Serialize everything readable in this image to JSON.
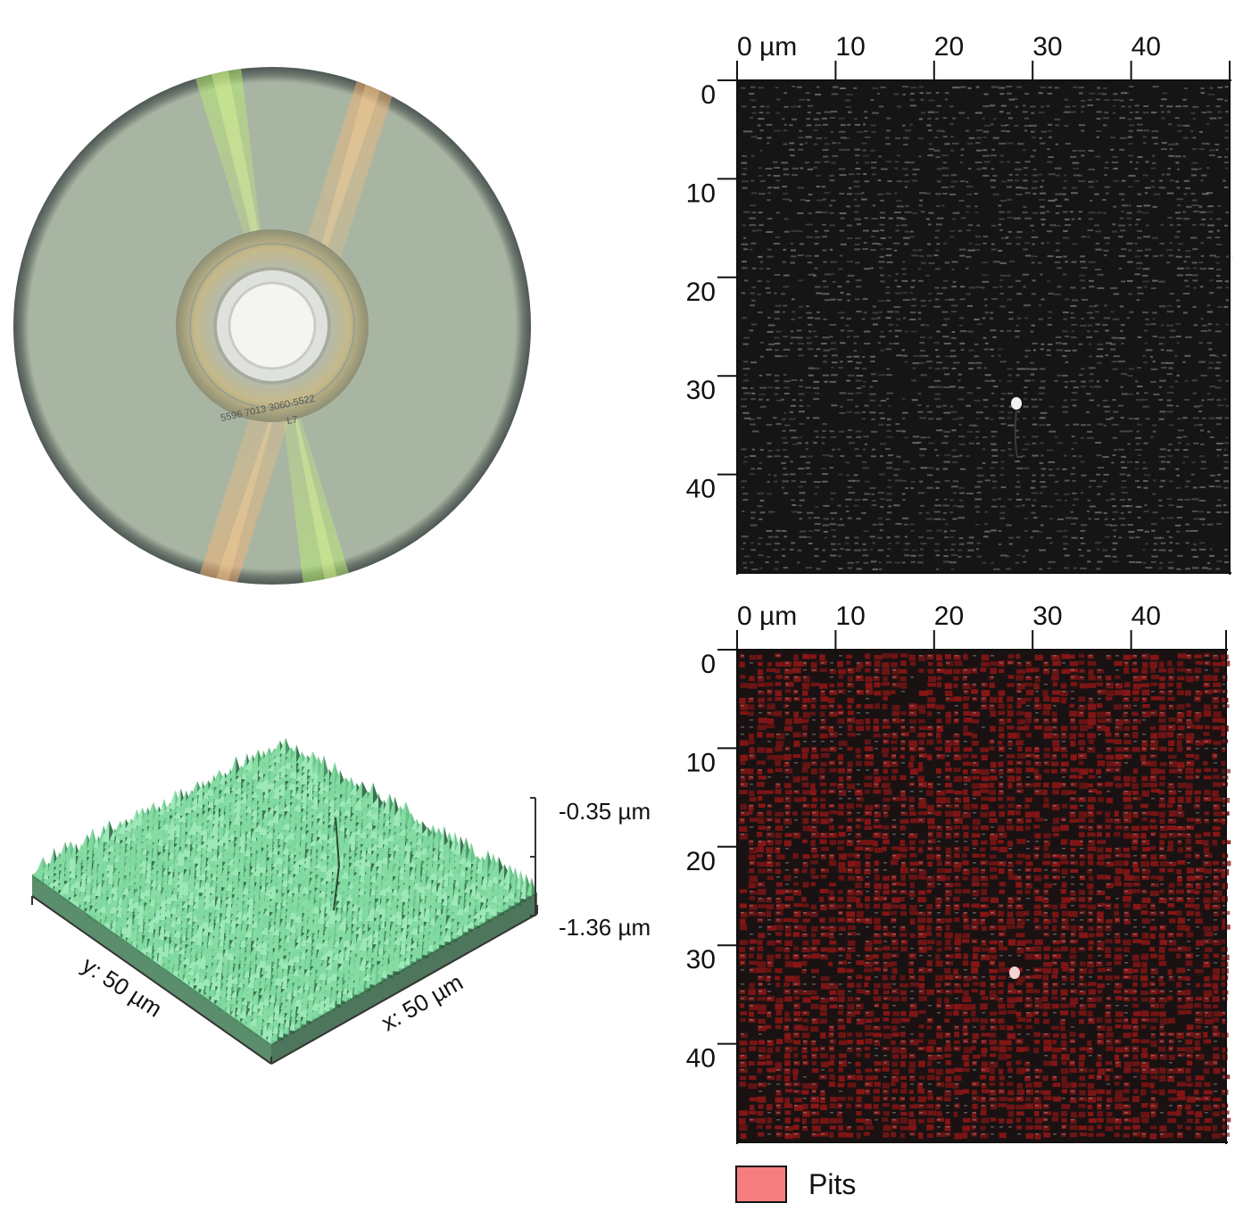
{
  "disc": {
    "hub_text_1": "5596 7013 3060-5522",
    "hub_text_2": "L7"
  },
  "afm_top": {
    "x_ticks": [
      "0 µm",
      "10",
      "20",
      "30",
      "40"
    ],
    "y_ticks": [
      "0",
      "10",
      "20",
      "30",
      "40"
    ]
  },
  "afm_bottom": {
    "x_ticks": [
      "0 µm",
      "10",
      "20",
      "30",
      "40"
    ],
    "y_ticks": [
      "0",
      "10",
      "20",
      "30",
      "40"
    ]
  },
  "height_map": {
    "z_max_label": "-0.35 µm",
    "z_min_label": "-1.36 µm",
    "x_axis_label": "x: 50 µm",
    "y_axis_label": "y: 50 µm"
  },
  "legend": {
    "label": "Pits",
    "color": "#f77e7e"
  },
  "colors": {
    "afm_background": "#151515",
    "pit_overlay": "#8e1616",
    "surface_green": "#7fd9a0",
    "disc_face": "#a9b5a3"
  }
}
